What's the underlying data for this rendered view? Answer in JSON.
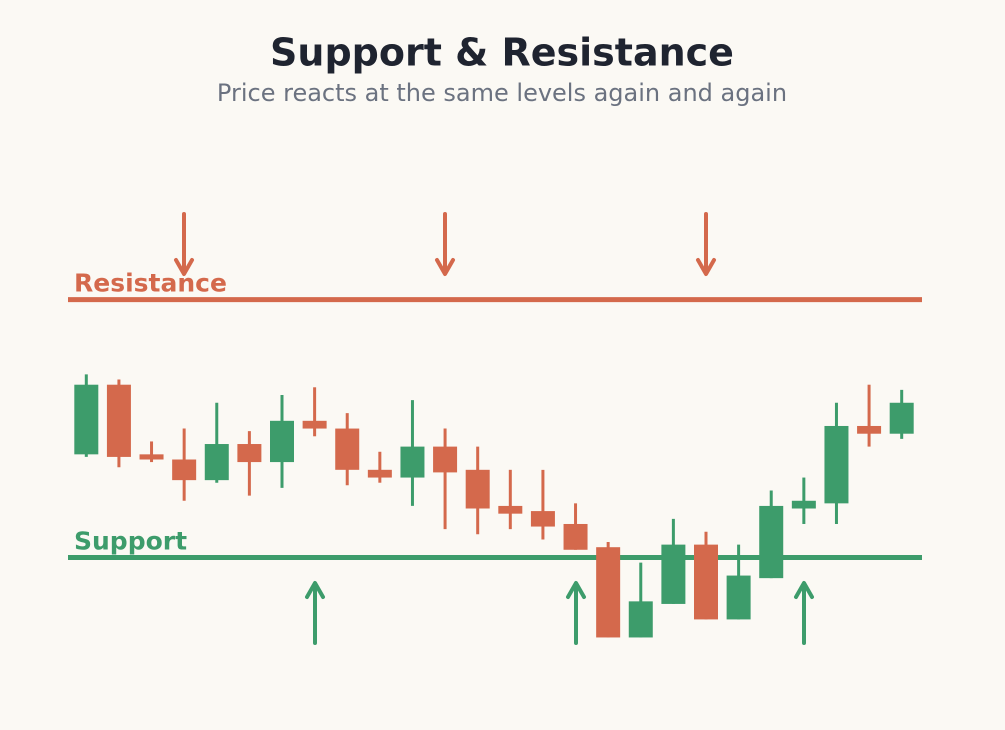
{
  "chart_data": {
    "type": "candlestick",
    "title": "Support & Resistance",
    "subtitle": "Price reacts at the same levels again and again",
    "ylim": [
      37,
      258
    ],
    "up_color": "#3d9c6b",
    "down_color": "#d4694c",
    "open": [
      140,
      167,
      140,
      138,
      130,
      144,
      137,
      153,
      150,
      134,
      131,
      143,
      134,
      120,
      118,
      113,
      104,
      69,
      82,
      105,
      76,
      92,
      119,
      121,
      151,
      148
    ],
    "high": [
      171,
      169,
      145,
      150,
      160,
      149,
      163,
      166,
      156,
      141,
      161,
      150,
      143,
      134,
      134,
      121,
      106,
      98,
      115,
      110,
      105,
      126,
      131,
      160,
      167,
      165
    ],
    "low": [
      139,
      135,
      137,
      122,
      129,
      124,
      127,
      147,
      128,
      129,
      120,
      111,
      109,
      111,
      107,
      103,
      69,
      69,
      82,
      76,
      76,
      92,
      113,
      113,
      143,
      146
    ],
    "close": [
      167,
      139,
      138,
      130,
      144,
      137,
      153,
      150,
      134,
      131,
      143,
      133,
      119,
      117,
      112,
      103,
      69,
      83,
      105,
      76,
      93,
      120,
      122,
      151,
      148,
      160
    ],
    "levels": [
      {
        "name": "Resistance",
        "value": 200,
        "color": "#d4694c"
      },
      {
        "name": "Support",
        "value": 100,
        "color": "#3d9c6b"
      }
    ]
  }
}
